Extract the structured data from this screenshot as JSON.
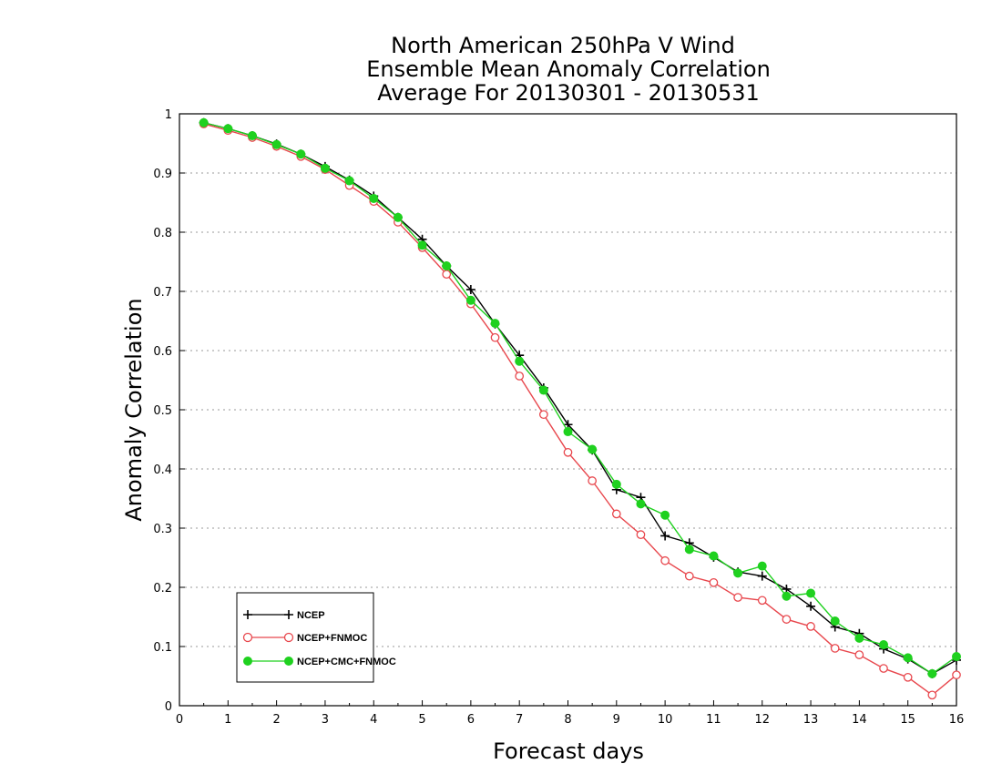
{
  "chart_data": {
    "type": "line",
    "title": [
      "North American 250hPa V Wind",
      "Ensemble Mean Anomaly Correlation",
      "Average For 20130301 - 20130531"
    ],
    "xlabel": "Forecast days",
    "ylabel": "Anomaly Correlation",
    "xlim": [
      0,
      16
    ],
    "ylim": [
      0,
      1
    ],
    "x_ticks": [
      "0",
      "1",
      "2",
      "3",
      "4",
      "5",
      "6",
      "7",
      "8",
      "9",
      "10",
      "11",
      "12",
      "13",
      "14",
      "15",
      "16"
    ],
    "y_ticks": [
      "0",
      "0.1",
      "0.2",
      "0.3",
      "0.4",
      "0.5",
      "0.6",
      "0.7",
      "0.8",
      "0.9",
      "1"
    ],
    "grid": "horizontal dotted",
    "legend_position": "bottom-left",
    "x": [
      0.5,
      1,
      1.5,
      2,
      2.5,
      3,
      3.5,
      4,
      4.5,
      5,
      5.5,
      6,
      6.5,
      7,
      7.5,
      8,
      8.5,
      9,
      9.5,
      10,
      10.5,
      11,
      11.5,
      12,
      12.5,
      13,
      13.5,
      14,
      14.5,
      15,
      15.5,
      16
    ],
    "series": [
      {
        "name": "NCEP",
        "color": "#000000",
        "marker": "plus",
        "values": [
          0.985,
          0.975,
          0.963,
          0.949,
          0.932,
          0.911,
          0.888,
          0.861,
          0.825,
          0.788,
          0.743,
          0.703,
          0.645,
          0.592,
          0.537,
          0.475,
          0.432,
          0.365,
          0.352,
          0.287,
          0.275,
          0.251,
          0.226,
          0.219,
          0.197,
          0.168,
          0.133,
          0.122,
          0.096,
          0.079,
          0.054,
          0.077
        ]
      },
      {
        "name": "NCEP+FNMOC",
        "color": "#e8474d",
        "marker": "open-circle",
        "values": [
          0.983,
          0.972,
          0.96,
          0.945,
          0.928,
          0.906,
          0.879,
          0.852,
          0.817,
          0.774,
          0.729,
          0.679,
          0.622,
          0.557,
          0.492,
          0.428,
          0.38,
          0.324,
          0.289,
          0.245,
          0.219,
          0.208,
          0.183,
          0.178,
          0.146,
          0.134,
          0.097,
          0.086,
          0.063,
          0.048,
          0.018,
          0.052
        ]
      },
      {
        "name": "NCEP+CMC+FNMOC",
        "color": "#1fd11f",
        "marker": "filled-circle",
        "values": [
          0.985,
          0.975,
          0.963,
          0.948,
          0.932,
          0.908,
          0.887,
          0.857,
          0.825,
          0.778,
          0.743,
          0.685,
          0.646,
          0.582,
          0.533,
          0.463,
          0.433,
          0.374,
          0.341,
          0.322,
          0.264,
          0.253,
          0.224,
          0.236,
          0.185,
          0.19,
          0.143,
          0.114,
          0.103,
          0.081,
          0.054,
          0.083
        ]
      }
    ]
  }
}
